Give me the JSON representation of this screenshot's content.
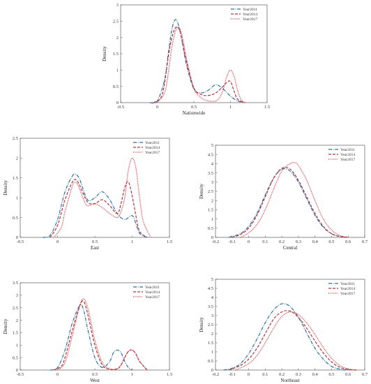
{
  "colors": {
    "Year2011": "#2a6fa8",
    "Year2014": "#b0343a",
    "Year2017": "#d9303a"
  },
  "chart_data": [
    {
      "type": "line",
      "xlabel": "Nationwide",
      "ylabel": "Density",
      "xlim": [
        -0.5,
        1.5
      ],
      "ylim": [
        0,
        3
      ],
      "xticks": [
        -0.5,
        0,
        0.5,
        1,
        1.5
      ],
      "yticks": [
        0,
        0.5,
        1,
        1.5,
        2,
        2.5,
        3
      ],
      "legend_position": "top-right",
      "grid": false,
      "series": [
        {
          "name": "Year2011",
          "style": "dashdot",
          "x": [
            -0.1,
            0.0,
            0.1,
            0.15,
            0.2,
            0.25,
            0.3,
            0.35,
            0.4,
            0.5,
            0.6,
            0.7,
            0.8,
            0.9,
            1.0,
            1.1,
            1.2
          ],
          "y": [
            0.0,
            0.05,
            0.7,
            1.5,
            2.25,
            2.55,
            2.3,
            1.75,
            1.15,
            0.42,
            0.3,
            0.38,
            0.55,
            0.42,
            0.2,
            0.05,
            0.0
          ]
        },
        {
          "name": "Year2014",
          "style": "dashed",
          "x": [
            -0.05,
            0.05,
            0.1,
            0.15,
            0.2,
            0.25,
            0.3,
            0.35,
            0.4,
            0.5,
            0.6,
            0.7,
            0.8,
            0.9,
            0.95,
            1.0,
            1.05,
            1.1,
            1.2
          ],
          "y": [
            0.0,
            0.15,
            0.6,
            1.4,
            2.0,
            2.3,
            2.25,
            1.8,
            1.25,
            0.45,
            0.25,
            0.22,
            0.3,
            0.5,
            0.62,
            0.65,
            0.35,
            0.1,
            0.0
          ]
        },
        {
          "name": "Year2017",
          "style": "dotted",
          "x": [
            0.0,
            0.1,
            0.15,
            0.2,
            0.25,
            0.3,
            0.35,
            0.4,
            0.5,
            0.6,
            0.7,
            0.8,
            0.85,
            0.9,
            0.95,
            1.0,
            1.05,
            1.1,
            1.15,
            1.2
          ],
          "y": [
            0.0,
            0.3,
            0.9,
            1.7,
            2.2,
            2.3,
            1.95,
            1.35,
            0.45,
            0.15,
            0.05,
            0.05,
            0.15,
            0.4,
            0.8,
            1.0,
            0.8,
            0.35,
            0.08,
            0.0
          ]
        }
      ]
    },
    {
      "type": "line",
      "xlabel": "East",
      "ylabel": "Density",
      "xlim": [
        -0.5,
        1.5
      ],
      "ylim": [
        0,
        2.5
      ],
      "xticks": [
        -0.5,
        0,
        0.5,
        1,
        1.5
      ],
      "yticks": [
        0,
        0.5,
        1,
        1.5,
        2,
        2.5
      ],
      "legend_position": "top-right",
      "grid": false,
      "series": [
        {
          "name": "Year2011",
          "style": "dashdot",
          "x": [
            -0.2,
            -0.1,
            0.0,
            0.1,
            0.2,
            0.25,
            0.3,
            0.4,
            0.5,
            0.6,
            0.7,
            0.8,
            0.9,
            1.0,
            1.05,
            1.1,
            1.2
          ],
          "y": [
            0.0,
            0.05,
            0.45,
            1.15,
            1.55,
            1.58,
            1.45,
            0.95,
            1.0,
            1.15,
            0.95,
            0.6,
            0.45,
            0.55,
            0.35,
            0.1,
            0.0
          ]
        },
        {
          "name": "Year2014",
          "style": "dashed",
          "x": [
            -0.1,
            0.0,
            0.1,
            0.2,
            0.25,
            0.3,
            0.4,
            0.5,
            0.6,
            0.7,
            0.8,
            0.85,
            0.9,
            0.95,
            1.0,
            1.05,
            1.1,
            1.2
          ],
          "y": [
            0.0,
            0.3,
            0.95,
            1.4,
            1.45,
            1.3,
            0.9,
            0.85,
            0.95,
            0.8,
            0.6,
            0.85,
            1.25,
            1.4,
            1.05,
            0.55,
            0.15,
            0.0
          ]
        },
        {
          "name": "Year2017",
          "style": "dotted",
          "x": [
            -0.05,
            0.05,
            0.1,
            0.2,
            0.25,
            0.3,
            0.35,
            0.4,
            0.5,
            0.6,
            0.7,
            0.8,
            0.85,
            0.9,
            0.95,
            1.0,
            1.05,
            1.1,
            1.15,
            1.25
          ],
          "y": [
            0.0,
            0.25,
            0.65,
            1.3,
            1.38,
            1.2,
            0.95,
            0.8,
            0.85,
            0.75,
            0.6,
            0.5,
            0.65,
            1.0,
            1.7,
            2.0,
            1.75,
            1.0,
            0.4,
            0.0
          ]
        }
      ]
    },
    {
      "type": "line",
      "xlabel": "Central",
      "ylabel": "Density",
      "xlim": [
        -0.2,
        0.7
      ],
      "ylim": [
        0,
        5
      ],
      "xticks": [
        -0.2,
        -0.1,
        0,
        0.1,
        0.2,
        0.3,
        0.4,
        0.5,
        0.6,
        0.7
      ],
      "yticks": [
        0,
        0.5,
        1,
        1.5,
        2,
        2.5,
        3,
        3.5,
        4,
        4.5,
        5
      ],
      "legend_position": "top-right",
      "grid": false,
      "series": [
        {
          "name": "Year2011",
          "style": "dashdot",
          "x": [
            -0.12,
            -0.05,
            0.0,
            0.05,
            0.1,
            0.15,
            0.2,
            0.25,
            0.3,
            0.35,
            0.4,
            0.45,
            0.5,
            0.55,
            0.6
          ],
          "y": [
            0.0,
            0.2,
            0.6,
            1.3,
            2.3,
            3.2,
            3.7,
            3.6,
            3.0,
            2.1,
            1.2,
            0.55,
            0.2,
            0.05,
            0.0
          ]
        },
        {
          "name": "Year2014",
          "style": "dashed",
          "x": [
            -0.1,
            -0.05,
            0.0,
            0.05,
            0.1,
            0.15,
            0.2,
            0.25,
            0.3,
            0.35,
            0.4,
            0.45,
            0.5,
            0.55,
            0.6
          ],
          "y": [
            0.0,
            0.15,
            0.5,
            1.2,
            2.2,
            3.2,
            3.75,
            3.7,
            3.1,
            2.2,
            1.3,
            0.6,
            0.2,
            0.05,
            0.0
          ]
        },
        {
          "name": "Year2017",
          "style": "dotted",
          "x": [
            -0.05,
            0.0,
            0.05,
            0.1,
            0.15,
            0.2,
            0.25,
            0.28,
            0.3,
            0.35,
            0.4,
            0.45,
            0.5,
            0.55,
            0.6
          ],
          "y": [
            0.0,
            0.25,
            0.7,
            1.5,
            2.6,
            3.6,
            4.0,
            4.05,
            3.9,
            3.1,
            2.0,
            1.0,
            0.4,
            0.1,
            0.0
          ]
        }
      ]
    },
    {
      "type": "line",
      "xlabel": "West",
      "ylabel": "Density",
      "xlim": [
        -0.5,
        1.5
      ],
      "ylim": [
        0,
        3.5
      ],
      "xticks": [
        -0.5,
        0,
        0.5,
        1,
        1.5
      ],
      "yticks": [
        0,
        0.5,
        1,
        1.5,
        2,
        2.5,
        3,
        3.5
      ],
      "legend_position": "top-right",
      "grid": false,
      "series": [
        {
          "name": "Year2011",
          "style": "dashdot",
          "x": [
            -0.1,
            0.0,
            0.1,
            0.2,
            0.3,
            0.35,
            0.4,
            0.5,
            0.6,
            0.7,
            0.75,
            0.8,
            0.85,
            0.9,
            0.95,
            1.0
          ],
          "y": [
            0.0,
            0.1,
            0.8,
            1.9,
            2.6,
            2.4,
            1.7,
            0.5,
            0.1,
            0.35,
            0.7,
            0.8,
            0.7,
            0.35,
            0.1,
            0.0
          ]
        },
        {
          "name": "Year2014",
          "style": "dashed",
          "x": [
            -0.05,
            0.05,
            0.1,
            0.2,
            0.3,
            0.35,
            0.4,
            0.5,
            0.6,
            0.7,
            0.8,
            0.85,
            0.9,
            0.95,
            1.0,
            1.05,
            1.1,
            1.2
          ],
          "y": [
            0.0,
            0.15,
            0.5,
            1.6,
            2.6,
            2.75,
            2.3,
            1.0,
            0.2,
            0.03,
            0.05,
            0.2,
            0.5,
            0.75,
            0.8,
            0.65,
            0.35,
            0.0
          ]
        },
        {
          "name": "Year2017",
          "style": "dotted",
          "x": [
            0.0,
            0.1,
            0.2,
            0.3,
            0.35,
            0.4,
            0.45,
            0.5,
            0.6,
            0.7,
            0.8,
            0.85,
            0.9,
            0.95,
            1.0,
            1.05,
            1.1,
            1.2
          ],
          "y": [
            0.0,
            0.3,
            1.4,
            2.6,
            2.85,
            2.55,
            1.9,
            1.2,
            0.3,
            0.05,
            0.05,
            0.2,
            0.5,
            0.75,
            0.8,
            0.65,
            0.35,
            0.0
          ]
        }
      ]
    },
    {
      "type": "line",
      "xlabel": "Northeast",
      "ylabel": "Density",
      "xlim": [
        -0.2,
        0.7
      ],
      "ylim": [
        0,
        5
      ],
      "xticks": [
        -0.2,
        -0.1,
        0,
        0.1,
        0.2,
        0.3,
        0.4,
        0.5,
        0.6,
        0.7
      ],
      "yticks": [
        0,
        0.5,
        1,
        1.5,
        2,
        2.5,
        3,
        3.5,
        4,
        4.5,
        5
      ],
      "legend_position": "top-right",
      "grid": false,
      "series": [
        {
          "name": "Year2011",
          "style": "dashdot",
          "x": [
            -0.15,
            -0.1,
            -0.05,
            0.0,
            0.05,
            0.1,
            0.15,
            0.2,
            0.25,
            0.3,
            0.35,
            0.4,
            0.45,
            0.5,
            0.55,
            0.6
          ],
          "y": [
            0.0,
            0.1,
            0.35,
            0.9,
            1.7,
            2.6,
            3.3,
            3.65,
            3.5,
            2.9,
            2.05,
            1.2,
            0.6,
            0.2,
            0.05,
            0.0
          ]
        },
        {
          "name": "Year2014",
          "style": "dashed",
          "x": [
            -0.12,
            -0.05,
            0.0,
            0.05,
            0.1,
            0.15,
            0.2,
            0.25,
            0.3,
            0.35,
            0.4,
            0.45,
            0.5,
            0.55,
            0.6,
            0.65
          ],
          "y": [
            0.0,
            0.25,
            0.6,
            1.2,
            2.0,
            2.8,
            3.2,
            3.25,
            2.9,
            2.3,
            1.6,
            0.95,
            0.45,
            0.15,
            0.04,
            0.0
          ]
        },
        {
          "name": "Year2017",
          "style": "dotted",
          "x": [
            -0.08,
            0.0,
            0.05,
            0.1,
            0.15,
            0.2,
            0.25,
            0.3,
            0.35,
            0.4,
            0.45,
            0.5,
            0.55,
            0.6,
            0.65
          ],
          "y": [
            0.0,
            0.35,
            0.8,
            1.5,
            2.3,
            2.95,
            3.2,
            3.05,
            2.6,
            1.95,
            1.25,
            0.65,
            0.25,
            0.06,
            0.0
          ]
        }
      ]
    }
  ]
}
